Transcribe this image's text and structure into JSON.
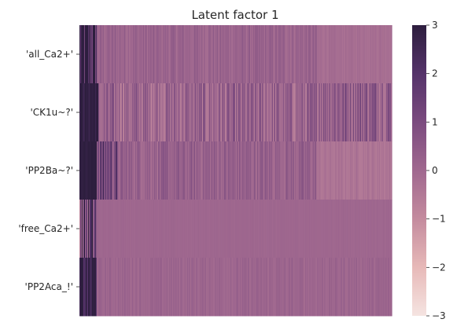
{
  "chart_data": {
    "type": "heatmap",
    "title": "Latent factor 1",
    "xlabel": "",
    "ylabel": "",
    "rows": [
      "'all_Ca2+'",
      "'CK1u~?'",
      "'PP2Ba~?'",
      "'free_Ca2+'",
      "'PP2Aca_!'"
    ],
    "columns_shown": false,
    "colorbar": {
      "vmin": -3,
      "vmax": 3,
      "ticks": [
        3,
        2,
        1,
        0,
        -1,
        -2,
        -3
      ],
      "tick_labels": [
        "3",
        "2",
        "1",
        "0",
        "−1",
        "−2",
        "−3"
      ],
      "colors": [
        "#f5e4e1",
        "#e7b9b8",
        "#c48b9e",
        "#a0688f",
        "#7b4b7f",
        "#55336a",
        "#2d1e3e"
      ]
    },
    "row_profiles": [
      {
        "row": "'all_Ca2+'",
        "segments": [
          {
            "from": 0.0,
            "to": 0.055,
            "mean": 2.3,
            "noise": 1.1
          },
          {
            "from": 0.055,
            "to": 0.76,
            "mean": 0.15,
            "noise": 0.22
          },
          {
            "from": 0.76,
            "to": 1.0,
            "mean": -0.15,
            "noise": 0.08
          }
        ]
      },
      {
        "row": "'CK1u~?'",
        "segments": [
          {
            "from": 0.0,
            "to": 0.06,
            "mean": 2.9,
            "noise": 0.2
          },
          {
            "from": 0.06,
            "to": 0.76,
            "mean": 0.1,
            "noise": 0.55
          },
          {
            "from": 0.76,
            "to": 1.0,
            "mean": 0.5,
            "noise": 0.6
          }
        ]
      },
      {
        "row": "'PP2Ba~?'",
        "segments": [
          {
            "from": 0.0,
            "to": 0.055,
            "mean": 3.0,
            "noise": 0.1
          },
          {
            "from": 0.055,
            "to": 0.12,
            "mean": 1.2,
            "noise": 0.8
          },
          {
            "from": 0.12,
            "to": 0.76,
            "mean": 0.25,
            "noise": 0.3
          },
          {
            "from": 0.76,
            "to": 1.0,
            "mean": -0.35,
            "noise": 0.12
          }
        ]
      },
      {
        "row": "'free_Ca2+'",
        "segments": [
          {
            "from": 0.0,
            "to": 0.055,
            "mean": 1.3,
            "noise": 1.3
          },
          {
            "from": 0.055,
            "to": 1.0,
            "mean": 0.05,
            "noise": 0.03
          }
        ]
      },
      {
        "row": "'PP2Aca_!'",
        "segments": [
          {
            "from": 0.0,
            "to": 0.055,
            "mean": 2.6,
            "noise": 0.6
          },
          {
            "from": 0.055,
            "to": 1.0,
            "mean": 0.1,
            "noise": 0.12
          }
        ]
      }
    ]
  }
}
